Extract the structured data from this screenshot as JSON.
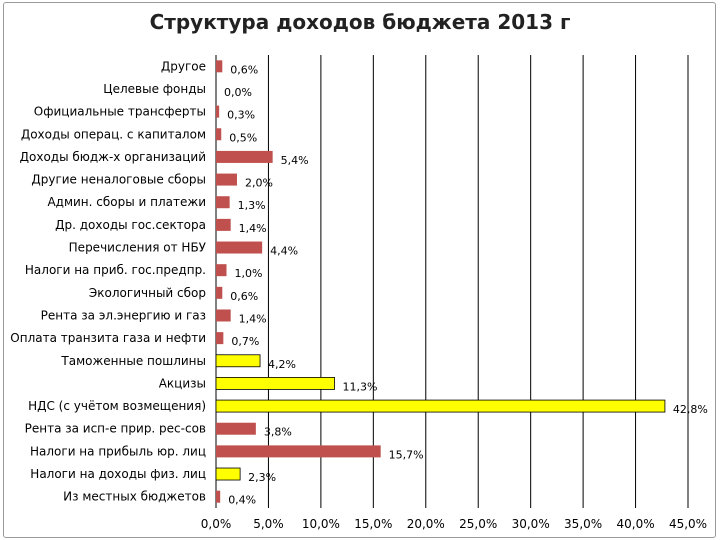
{
  "chart_data": {
    "type": "bar",
    "orientation": "horizontal",
    "title": "Структура доходов бюджета 2013 г",
    "xlim": [
      0,
      45
    ],
    "xticks": [
      "0,0%",
      "5,0%",
      "10,0%",
      "15,0%",
      "20,0%",
      "25,0%",
      "30,0%",
      "35,0%",
      "40,0%",
      "45,0%"
    ],
    "grid": "vertical",
    "legend": "none",
    "colors": {
      "default": "#c0504d",
      "highlight": "#ffff00",
      "grid": "#000000"
    },
    "categories": [
      "Другое",
      "Целевые фонды",
      "Официальные трансферты",
      "Доходы операц. с капиталом",
      "Доходы бюдж-х организаций",
      "Другие неналоговые сборы",
      "Админ. сборы и платежи",
      "Др. доходы гос.сектора",
      "Перечисления от НБУ",
      "Налоги на приб. гос.предпр.",
      "Экологичный сбор",
      "Рента за эл.энергию и газ",
      "Оплата транзита газа и нефти",
      "Таможенные пошлины",
      "Акцизы",
      "НДС (с учётом возмещения)",
      "Рента за исп-е прир. рес-сов",
      "Налоги на прибыль юр. лиц",
      "Налоги на доходы физ. лиц",
      "Из местных бюджетов"
    ],
    "values": [
      0.6,
      0.0,
      0.3,
      0.5,
      5.4,
      2.0,
      1.3,
      1.4,
      4.4,
      1.0,
      0.6,
      1.4,
      0.7,
      4.2,
      11.3,
      42.8,
      3.8,
      15.7,
      2.3,
      0.4
    ],
    "value_labels": [
      "0,6%",
      "0,0%",
      "0,3%",
      "0,5%",
      "5,4%",
      "2,0%",
      "1,3%",
      "1,4%",
      "4,4%",
      "1,0%",
      "0,6%",
      "1,4%",
      "0,7%",
      "4,2%",
      "11,3%",
      "42,8%",
      "3,8%",
      "15,7%",
      "2,3%",
      "0,4%"
    ],
    "highlighted": [
      false,
      false,
      false,
      false,
      false,
      false,
      false,
      false,
      false,
      false,
      false,
      false,
      false,
      true,
      true,
      true,
      false,
      false,
      true,
      false
    ]
  }
}
